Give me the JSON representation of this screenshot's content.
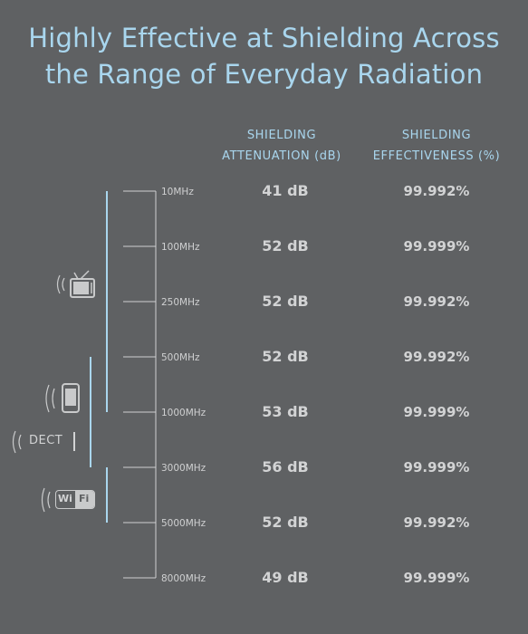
{
  "title_line1": "Highly Effective at Shielding Across",
  "title_line2": "the Range of Everyday Radiation",
  "chart_data": {
    "type": "table",
    "columns": [
      {
        "line1": "SHIELDING",
        "line2": "ATTENUATION (dB)"
      },
      {
        "line1": "SHIELDING",
        "line2": "EFFECTIVENESS (%)"
      }
    ],
    "rows": [
      {
        "freq": "10MHz",
        "attenuation": "41 dB",
        "effectiveness": "99.992%"
      },
      {
        "freq": "100MHz",
        "attenuation": "52 dB",
        "effectiveness": "99.999%"
      },
      {
        "freq": "250MHz",
        "attenuation": "52 dB",
        "effectiveness": "99.992%"
      },
      {
        "freq": "500MHz",
        "attenuation": "52 dB",
        "effectiveness": "99.992%"
      },
      {
        "freq": "1000MHz",
        "attenuation": "53 dB",
        "effectiveness": "99.999%"
      },
      {
        "freq": "3000MHz",
        "attenuation": "56 dB",
        "effectiveness": "99.999%"
      },
      {
        "freq": "5000MHz",
        "attenuation": "52 dB",
        "effectiveness": "99.992%"
      },
      {
        "freq": "8000MHz",
        "attenuation": "49 dB",
        "effectiveness": "99.999%"
      }
    ],
    "device_ranges": [
      {
        "icon": "tv-icon",
        "from": "10MHz",
        "to": "1000MHz"
      },
      {
        "icon": "mobile-phone-icon",
        "from": "500MHz",
        "to": "3000MHz"
      },
      {
        "icon": "wifi-icon",
        "from": "3000MHz",
        "to": "5000MHz"
      }
    ],
    "dect_label": "DECT",
    "wifi_label_wi": "Wi",
    "wifi_label_fi": "Fi"
  },
  "colors": {
    "background": "#5f6163",
    "accent": "#a9d6ee",
    "value_text": "#d2d3d4",
    "tick": "#cfd0d1",
    "icon": "#c9cacb"
  }
}
